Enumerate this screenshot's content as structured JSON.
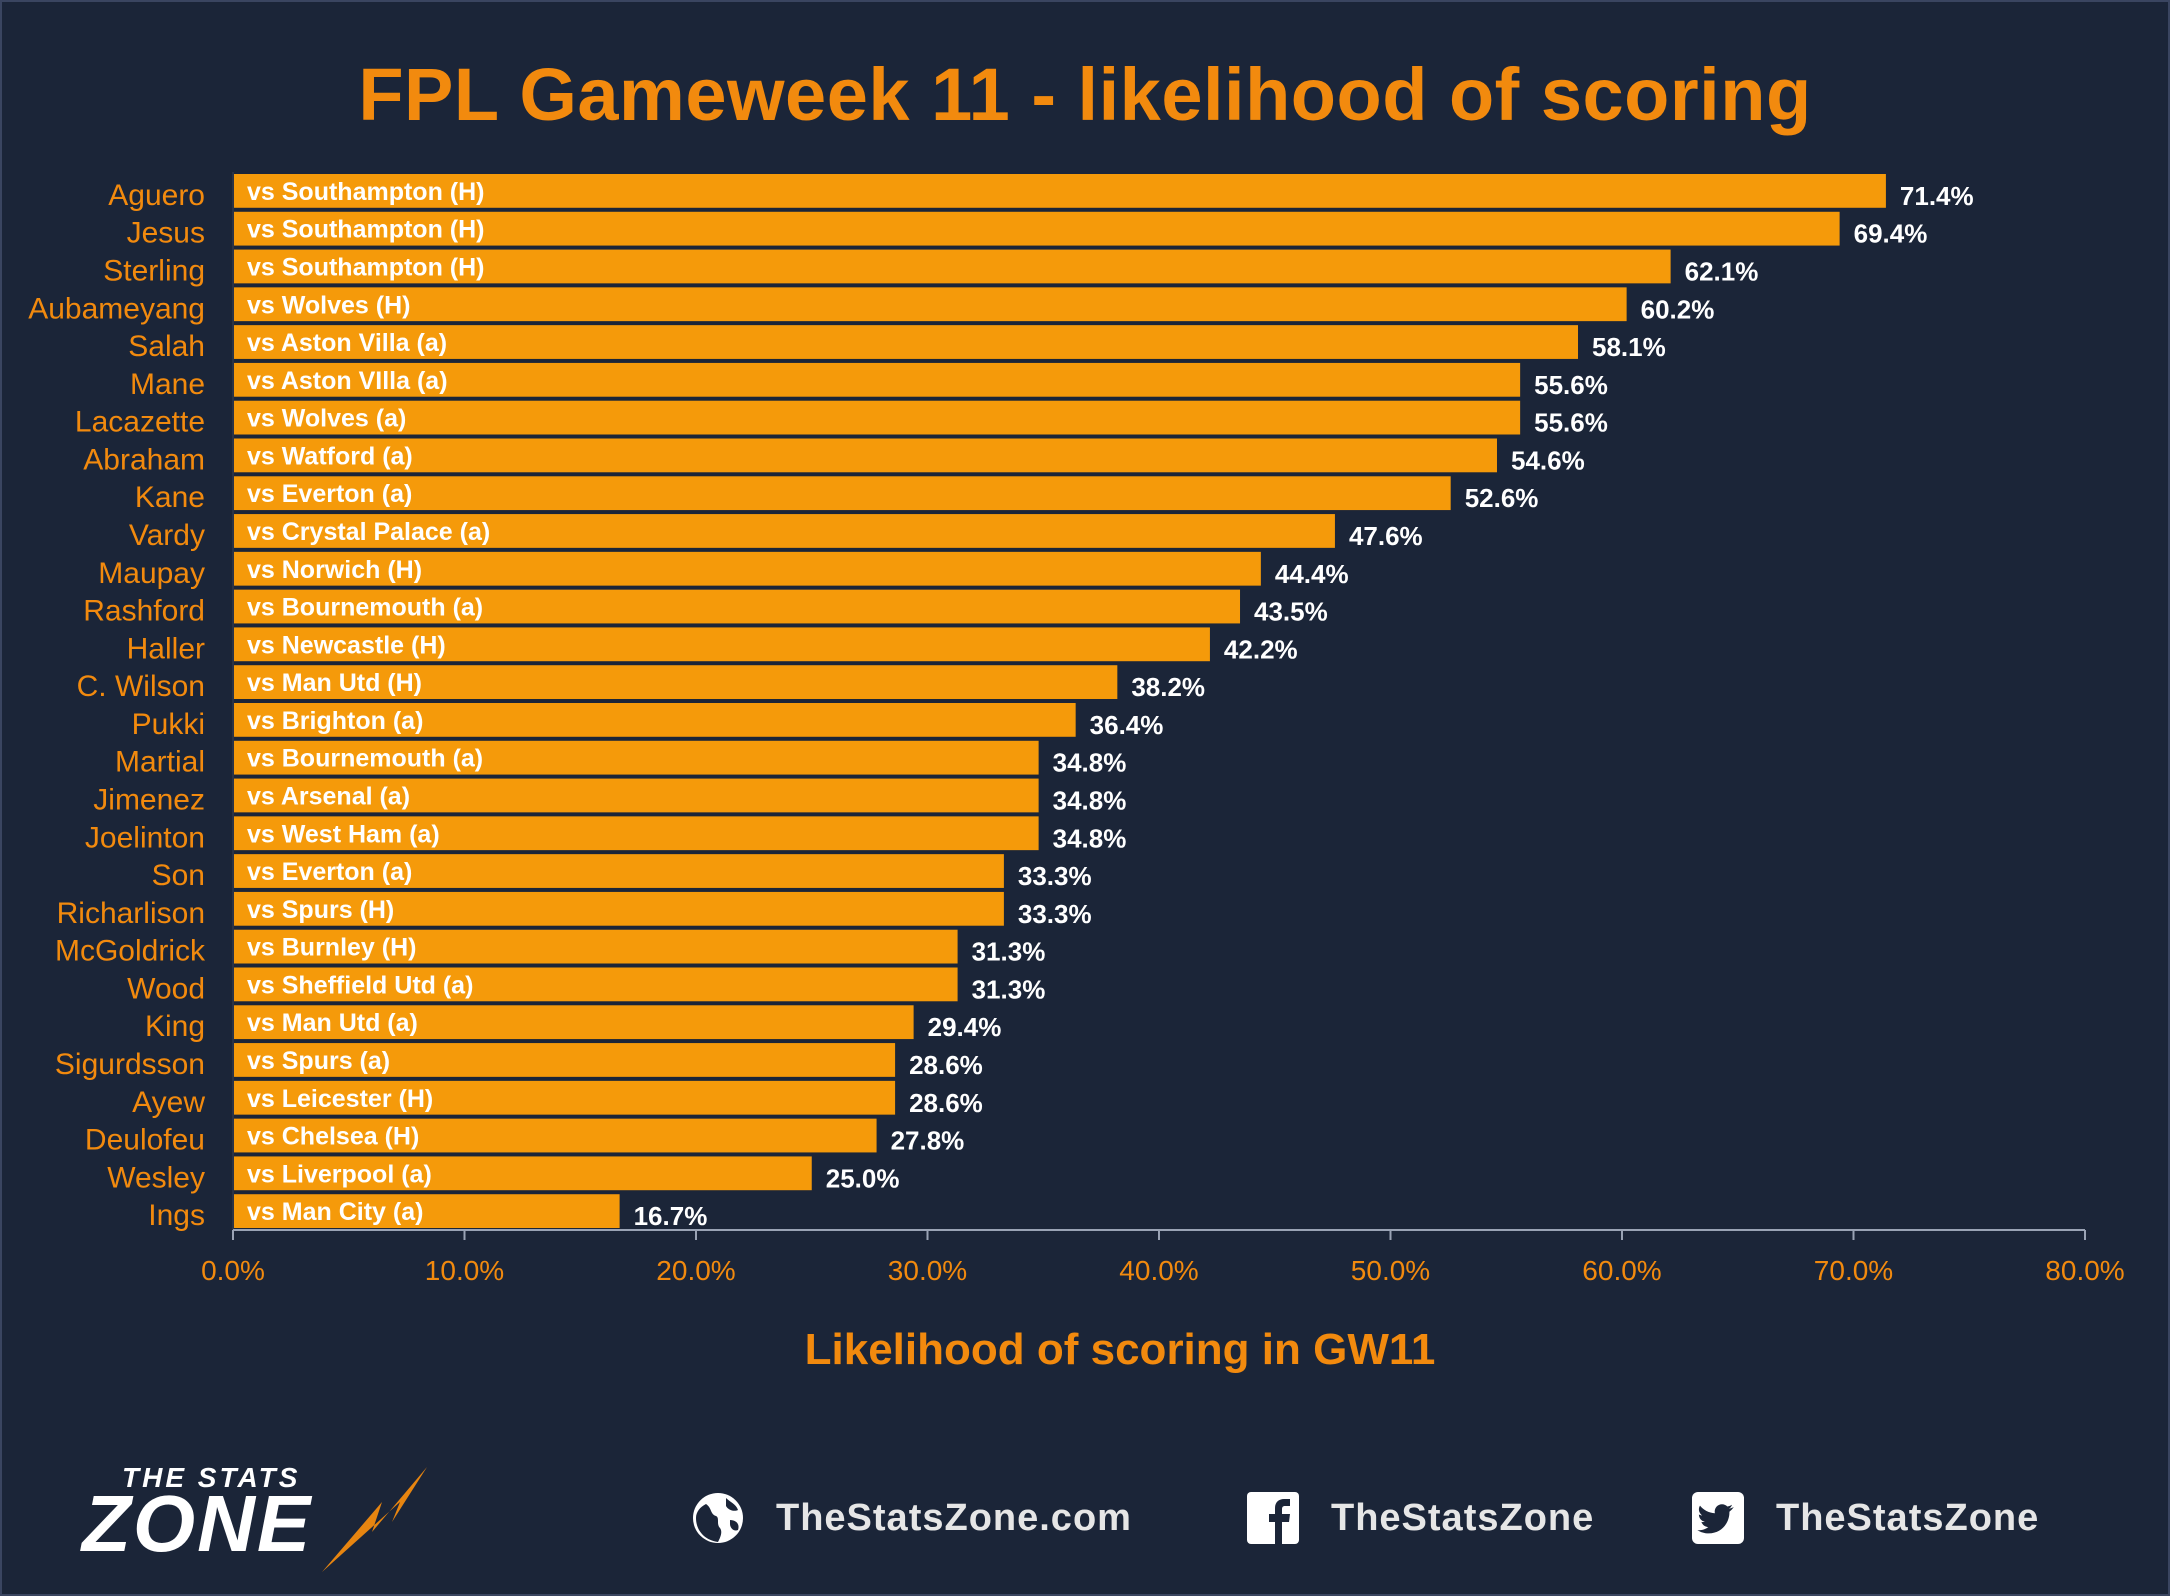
{
  "title": "FPL Gameweek 11 - likelihood of scoring",
  "colors": {
    "background": "#1b2538",
    "bar": "#f59a0a",
    "accent": "#f28a0e",
    "text_white": "#ffffff"
  },
  "chart_data": {
    "type": "bar",
    "orientation": "horizontal",
    "title": "FPL Gameweek 11 - likelihood of scoring",
    "xlabel": "Likelihood of scoring in GW11",
    "ylabel": "",
    "xlim": [
      0,
      80
    ],
    "x_ticks": [
      "0.0%",
      "10.0%",
      "20.0%",
      "30.0%",
      "40.0%",
      "50.0%",
      "60.0%",
      "70.0%",
      "80.0%"
    ],
    "grid": false,
    "categories": [
      "Aguero",
      "Jesus",
      "Sterling",
      "Aubameyang",
      "Salah",
      "Mane",
      "Lacazette",
      "Abraham",
      "Kane",
      "Vardy",
      "Maupay",
      "Rashford",
      "Haller",
      "C. Wilson",
      "Pukki",
      "Martial",
      "Jimenez",
      "Joelinton",
      "Son",
      "Richarlison",
      "McGoldrick",
      "Wood",
      "King",
      "Sigurdsson",
      "Ayew",
      "Deulofeu",
      "Wesley",
      "Ings"
    ],
    "bar_labels": [
      "vs Southampton (H)",
      "vs Southampton (H)",
      "vs Southampton (H)",
      "vs Wolves (H)",
      "vs Aston Villa (a)",
      "vs Aston VIlla (a)",
      "vs Wolves (a)",
      "vs Watford (a)",
      "vs Everton (a)",
      "vs Crystal Palace (a)",
      "vs Norwich (H)",
      "vs Bournemouth (a)",
      "vs Newcastle (H)",
      "vs Man Utd (H)",
      "vs Brighton (a)",
      "vs Bournemouth (a)",
      "vs Arsenal (a)",
      "vs West Ham (a)",
      "vs Everton (a)",
      "vs Spurs (H)",
      "vs Burnley (H)",
      "vs Sheffield Utd (a)",
      "vs Man Utd (a)",
      "vs Spurs (a)",
      "vs Leicester (H)",
      "vs Chelsea (H)",
      "vs Liverpool (a)",
      "vs Man City (a)"
    ],
    "values": [
      71.4,
      69.4,
      62.1,
      60.2,
      58.1,
      55.6,
      55.6,
      54.6,
      52.6,
      47.6,
      44.4,
      43.5,
      42.2,
      38.2,
      36.4,
      34.8,
      34.8,
      34.8,
      33.3,
      33.3,
      31.3,
      31.3,
      29.4,
      28.6,
      28.6,
      27.8,
      25.0,
      16.7
    ],
    "value_labels": [
      "71.4%",
      "69.4%",
      "62.1%",
      "60.2%",
      "58.1%",
      "55.6%",
      "55.6%",
      "54.6%",
      "52.6%",
      "47.6%",
      "44.4%",
      "43.5%",
      "42.2%",
      "38.2%",
      "36.4%",
      "34.8%",
      "34.8%",
      "34.8%",
      "33.3%",
      "33.3%",
      "31.3%",
      "31.3%",
      "29.4%",
      "28.6%",
      "28.6%",
      "27.8%",
      "25.0%",
      "16.7%"
    ]
  },
  "footer": {
    "logo_small": "THE STATS",
    "logo_main": "ZONE",
    "website": "TheStatsZone.com",
    "facebook": "TheStatsZone",
    "twitter": "TheStatsZone",
    "icons": [
      "globe-icon",
      "facebook-icon",
      "twitter-icon"
    ]
  }
}
